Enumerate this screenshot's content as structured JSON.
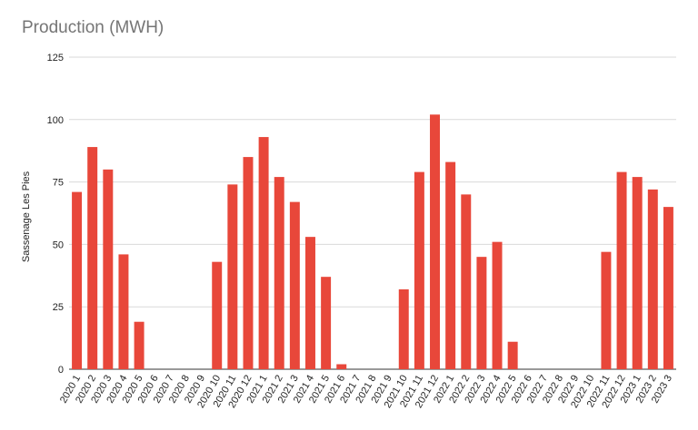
{
  "chart_data": {
    "type": "bar",
    "title": "Production (MWH)",
    "xlabel": "",
    "ylabel": "Sassenage Les Pies",
    "ylim": [
      0,
      125
    ],
    "yticks": [
      0,
      25,
      50,
      75,
      100,
      125
    ],
    "grid": true,
    "bar_color": "#e8473a",
    "categories": [
      "2020 1",
      "2020 2",
      "2020 3",
      "2020 4",
      "2020 5",
      "2020 6",
      "2020 7",
      "2020 8",
      "2020 9",
      "2020 10",
      "2020 11",
      "2020 12",
      "2021 1",
      "2021 2",
      "2021 3",
      "2021 4",
      "2021 5",
      "2021 6",
      "2021 7",
      "2021 8",
      "2021 9",
      "2021 10",
      "2021 11",
      "2021 12",
      "2022 1",
      "2022 2",
      "2022 3",
      "2022 4",
      "2022 5",
      "2022 6",
      "2022 7",
      "2022 8",
      "2022 9",
      "2022 10",
      "2022 11",
      "2022 12",
      "2023 1",
      "2023 2",
      "2023 3"
    ],
    "values": [
      71,
      89,
      80,
      46,
      19,
      0,
      0,
      0,
      0,
      43,
      74,
      85,
      93,
      77,
      67,
      53,
      37,
      2,
      0,
      0,
      0,
      32,
      79,
      102,
      83,
      70,
      45,
      51,
      11,
      0,
      0,
      0,
      0,
      0,
      47,
      79,
      77,
      72,
      65
    ]
  }
}
